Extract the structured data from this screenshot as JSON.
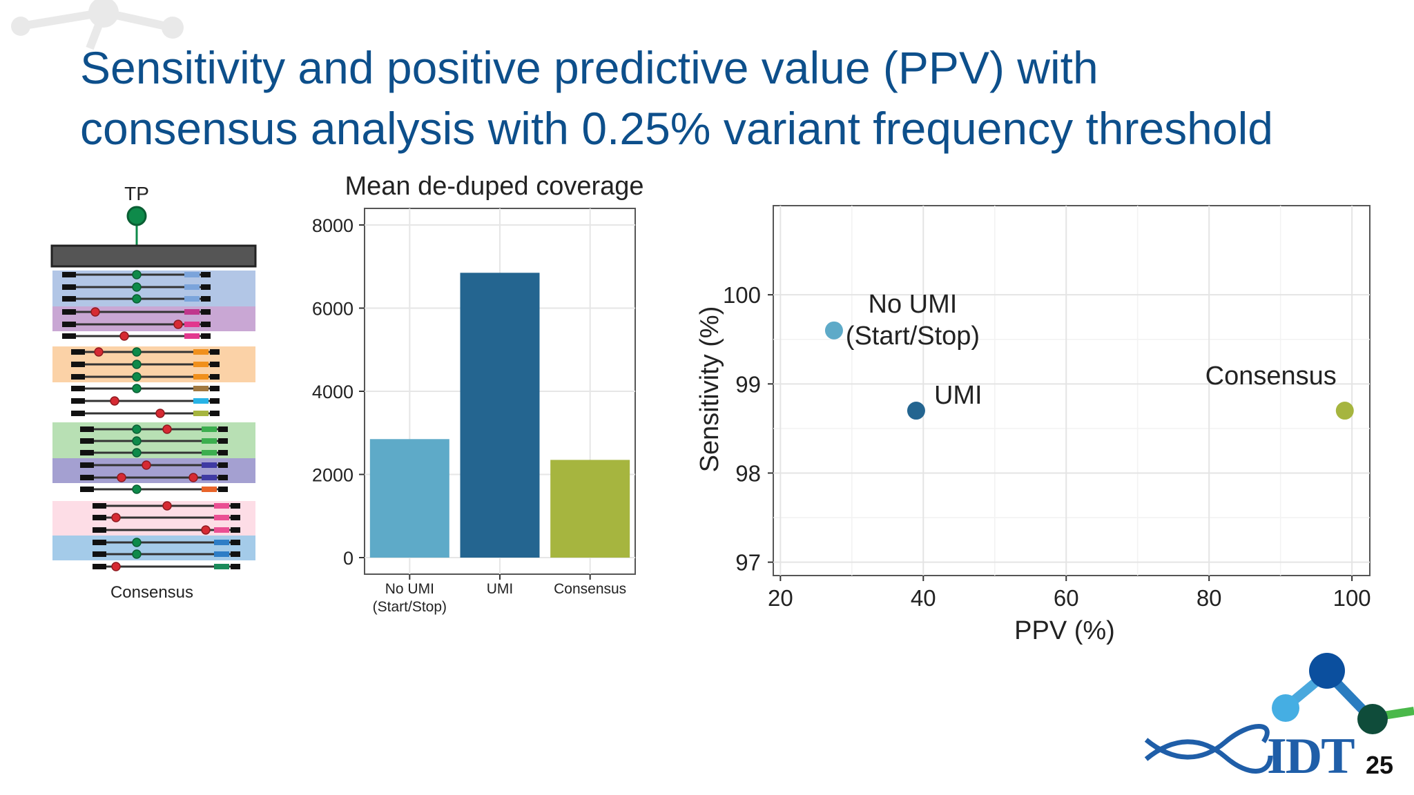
{
  "slide": {
    "title_line1": "Sensitivity and positive predictive value (PPV) with",
    "title_line2": "consensus analysis with 0.25% variant frequency threshold",
    "page_number": "25",
    "brand_text": "IDT",
    "title_color": "#0d4f8b"
  },
  "diagram": {
    "top_label": "TP",
    "bottom_label": "Consensus",
    "family_colors": [
      "#aec3e5",
      "#c6a2d2",
      "#fbd0a2",
      "#b4deb0",
      "#9f9bcf",
      "#fddbe5",
      "#9fc8e8"
    ],
    "true_variant_color": "#0e8a4a",
    "error_color": "#d62a33"
  },
  "chart_data": [
    {
      "type": "bar",
      "title": "Mean de-duped coverage",
      "categories": [
        "No UMI\n(Start/Stop)",
        "UMI",
        "Consensus"
      ],
      "values": [
        2850,
        6850,
        2350
      ],
      "colors": [
        "#5eaac8",
        "#246590",
        "#a6b53f"
      ],
      "ylim": [
        0,
        8000
      ],
      "yticks": [
        0,
        2000,
        4000,
        6000,
        8000
      ],
      "xlabel": "",
      "ylabel": "",
      "grid": true,
      "legend": "none"
    },
    {
      "type": "scatter",
      "title": "",
      "xlabel": "PPV (%)",
      "ylabel": "Sensitivity (%)",
      "xlim": [
        19,
        102.5
      ],
      "ylim": [
        96.85,
        101.0
      ],
      "xticks": [
        20,
        40,
        60,
        80,
        100
      ],
      "yticks": [
        97,
        98,
        99,
        100
      ],
      "grid": true,
      "legend": "none",
      "points": [
        {
          "label": "No UMI\n(Start/Stop)",
          "x": 27.5,
          "y": 99.6,
          "color": "#5eaac8",
          "label_pos": "right-top"
        },
        {
          "label": "UMI",
          "x": 39,
          "y": 98.7,
          "color": "#246590",
          "label_pos": "right-top"
        },
        {
          "label": "Consensus",
          "x": 99,
          "y": 98.7,
          "color": "#a6b53f",
          "label_pos": "left-top"
        }
      ]
    }
  ]
}
